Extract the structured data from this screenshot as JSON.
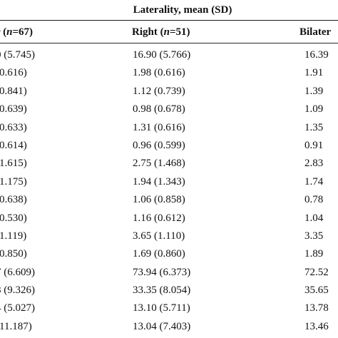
{
  "table": {
    "caption": "Laterality, mean (SD)",
    "headers": {
      "left": "r (",
      "left_n": "n",
      "left_tail": "=67)",
      "right": "Right (",
      "right_n": "n",
      "right_tail": "=51)",
      "bilateral": "Bilater"
    },
    "rows": [
      {
        "left": "0 (5.745)",
        "right": "16.90 (5.766)",
        "bilateral": "16.39"
      },
      {
        "left": "(0.616)",
        "right": "1.98 (0.616)",
        "bilateral": "1.91"
      },
      {
        "left": "(0.841)",
        "right": "1.12 (0.739)",
        "bilateral": "1.39"
      },
      {
        "left": "(0.639)",
        "right": "0.98 (0.678)",
        "bilateral": "1.09"
      },
      {
        "left": "(0.633)",
        "right": "1.31 (0.616)",
        "bilateral": "1.35"
      },
      {
        "left": "(0.614)",
        "right": "0.96 (0.599)",
        "bilateral": "0.91"
      },
      {
        "left": "(1.615)",
        "right": "2.75 (1.468)",
        "bilateral": "2.83"
      },
      {
        "left": "(1.175)",
        "right": "1.94 (1.343)",
        "bilateral": "1.74"
      },
      {
        "left": "(0.638)",
        "right": "1.06 (0.858)",
        "bilateral": "0.78"
      },
      {
        "left": "(0.530)",
        "right": "1.16 (0.612)",
        "bilateral": "1.04"
      },
      {
        "left": "(1.119)",
        "right": "3.65 (1.110)",
        "bilateral": "3.35"
      },
      {
        "left": "(0.850)",
        "right": "1.69 (0.860)",
        "bilateral": "1.89"
      },
      {
        "left": "7 (6.609)",
        "right": "73.94 (6.373)",
        "bilateral": "72.52"
      },
      {
        "left": "8 (9.326)",
        "right": "33.35 (8.054)",
        "bilateral": "35.65"
      },
      {
        "left": "4 (5.027)",
        "right": "13.10 (5.711)",
        "bilateral": "13.78"
      },
      {
        "left": "(11.187)",
        "right": "13.04 (7.403)",
        "bilateral": "13.46"
      }
    ]
  }
}
